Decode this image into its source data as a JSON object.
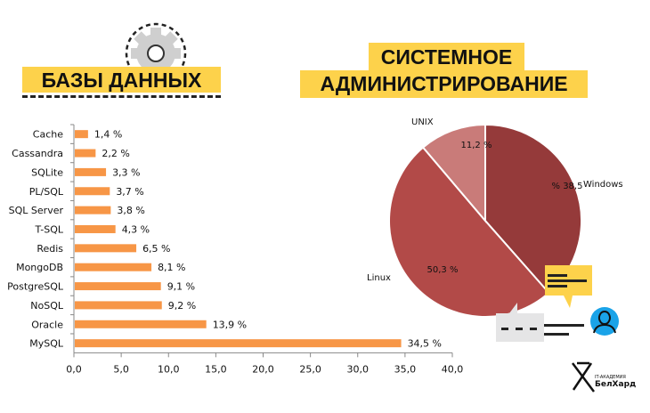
{
  "left_title": "БАЗЫ ДАННЫХ",
  "right_title": {
    "line1": "СИСТЕМНОЕ",
    "line2": "АДМИНИСТРИРОВАНИЕ"
  },
  "logo": {
    "line1": "IT-АКАДЕМИЯ",
    "line2": "БелХард"
  },
  "chart_data": [
    {
      "type": "bar",
      "orientation": "horizontal",
      "title": "БАЗЫ ДАННЫХ",
      "categories": [
        "Cache",
        "Cassandra",
        "SQLite",
        "PL/SQL",
        "SQL Server",
        "T-SQL",
        "Redis",
        "MongoDB",
        "PostgreSQL",
        "NoSQL",
        "Oracle",
        "MySQL"
      ],
      "values": [
        1.4,
        2.2,
        3.3,
        3.7,
        3.8,
        4.3,
        6.5,
        8.1,
        9.1,
        9.2,
        13.9,
        34.5
      ],
      "labels": [
        "1,4 %",
        "2,2 %",
        "3,3 %",
        "3,7 %",
        "3,8 %",
        "4,3 %",
        "6,5 %",
        "8,1 %",
        "9,1 %",
        "9,2 %",
        "13,9 %",
        "34,5 %"
      ],
      "xlim": [
        0,
        40
      ],
      "xticks": [
        "0,0",
        "5,0",
        "10,0",
        "15,0",
        "20,0",
        "25,0",
        "30,0",
        "35,0",
        "40,0"
      ],
      "color": "#f79646"
    },
    {
      "type": "pie",
      "title": "СИСТЕМНОЕ АДМИНИСТРИРОВАНИЕ",
      "slices": [
        {
          "name": "Windows",
          "value": 38.5,
          "label": "% 38,5",
          "color": "#953a3a"
        },
        {
          "name": "Linux",
          "value": 50.3,
          "label": "50,3 %",
          "color": "#b24a48"
        },
        {
          "name": "UNIX",
          "value": 11.2,
          "label": "11,2 %",
          "color": "#c97b79"
        }
      ]
    }
  ]
}
